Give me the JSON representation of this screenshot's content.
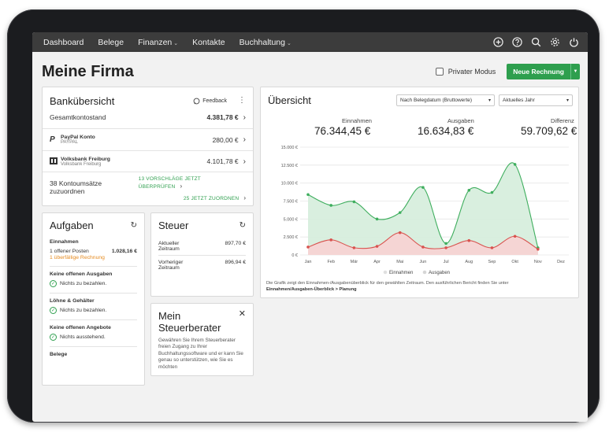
{
  "nav": {
    "items": [
      {
        "label": "Dashboard",
        "dropdown": false
      },
      {
        "label": "Belege",
        "dropdown": false
      },
      {
        "label": "Finanzen",
        "dropdown": true
      },
      {
        "label": "Kontakte",
        "dropdown": false
      },
      {
        "label": "Buchhaltung",
        "dropdown": true
      }
    ],
    "icons": [
      "plus-circle-icon",
      "help-icon",
      "search-icon",
      "gear-icon",
      "power-icon"
    ]
  },
  "header": {
    "title": "Meine Firma",
    "private_mode_label": "Privater Modus",
    "new_invoice_label": "Neue Rechnung"
  },
  "bank": {
    "title": "Bankübersicht",
    "feedback_label": "Feedback",
    "total_label": "Gesamtkontostand",
    "total_value": "4.381,78 €",
    "accounts": [
      {
        "name": "PayPal Konto",
        "sub": "PAYPAL",
        "value": "280,00 €",
        "icon": "paypal-icon"
      },
      {
        "name": "Volksbank Freiburg",
        "sub": "Volksbank Freiburg",
        "value": "4.101,78 €",
        "icon": "bank-icon"
      }
    ],
    "unassigned_label": "38 Kontoumsätze zuzuordnen",
    "suggest_link": "13 VORSCHLÄGE JETZT ÜBERPRÜFEN",
    "assign_link": "25 JETZT ZUORDNEN"
  },
  "tasks": {
    "title": "Aufgaben",
    "einnahmen_title": "Einnahmen",
    "open_items_label": "1 offener Posten",
    "open_items_value": "1.028,16 €",
    "overdue_label": "1 überfällige Rechnung",
    "no_expenses_title": "Keine offenen Ausgaben",
    "nothing_to_pay_1": "Nichts zu bezahlen.",
    "wages_title": "Löhne & Gehälter",
    "nothing_to_pay_2": "Nichts zu bezahlen.",
    "no_offers_title": "Keine offenen Angebote",
    "nothing_outstanding": "Nichts ausstehend.",
    "receipts_title": "Belege"
  },
  "tax": {
    "title": "Steuer",
    "rows": [
      {
        "label_1": "Aktueller",
        "label_2": "Zeitraum",
        "value": "897,70 €"
      },
      {
        "label_1": "Vorheriger",
        "label_2": "Zeitraum",
        "value": "896,94 €"
      }
    ]
  },
  "advisor": {
    "title_1": "Mein",
    "title_2": "Steuerberater",
    "body_lines": [
      "Gewähren Sie Ihrem Steuerberater",
      "freien Zugang zu Ihrer",
      "Buchhaltungssoftware und er kann Sie",
      "genau so unterstützen, wie Sie es",
      "möchten"
    ]
  },
  "overview": {
    "title": "Übersicht",
    "filter_1": "Nach Belegdatum (Bruttowerte)",
    "filter_2": "Aktuelles Jahr",
    "income_label": "Einnahmen",
    "income_value": "76.344,45 €",
    "expense_label": "Ausgaben",
    "expense_value": "16.634,83 €",
    "diff_label": "Differenz",
    "diff_value": "59.709,62 €",
    "footnote_1": "Die Grafik zeigt den Einnahmen-/Ausgabenüberblick für den gewählten Zeitraum. Den ausführlichen Bericht finden Sie unter",
    "footnote_2": "Einnahmen/Ausgaben-Überblick > Planung"
  },
  "chart_data": {
    "type": "area",
    "title": "",
    "categories": [
      "Jan",
      "Feb",
      "Mär",
      "Apr",
      "Mai",
      "Jun",
      "Jul",
      "Aug",
      "Sep",
      "Okt",
      "Nov",
      "Dez"
    ],
    "y_tick_labels": [
      "15.000 €",
      "12.500 €",
      "10.000 €",
      "7.500 €",
      "5.000 €",
      "2.500 €",
      "0 €"
    ],
    "ylim": [
      0,
      15000
    ],
    "series": [
      {
        "name": "Einnahmen",
        "color": "#3fae5e",
        "fill": "#d7eedd",
        "values": [
          8400,
          6900,
          7400,
          5000,
          5900,
          9400,
          1600,
          9000,
          8700,
          12600,
          1000,
          null
        ]
      },
      {
        "name": "Ausgaben",
        "color": "#d9534f",
        "fill": "#f7d3d3",
        "values": [
          1100,
          2100,
          1000,
          1200,
          3100,
          1100,
          1000,
          2000,
          1000,
          2600,
          800,
          null
        ]
      }
    ],
    "legend_position": "bottom-center"
  }
}
